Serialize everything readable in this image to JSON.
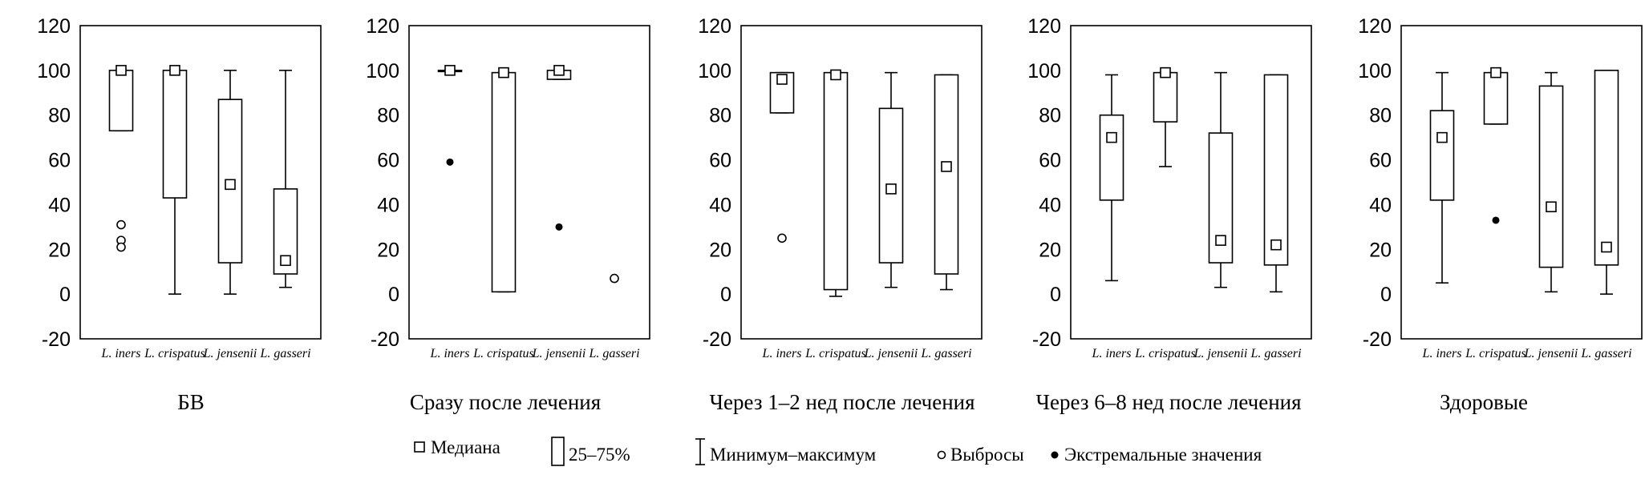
{
  "chart_data": [
    {
      "type": "boxplot",
      "title": "БВ",
      "categories": [
        "L. iners",
        "L. crispatus",
        "L. jensenii",
        "L. gasseri"
      ],
      "ylim": [
        -20,
        120
      ],
      "yticks": [
        -20,
        0,
        20,
        40,
        60,
        80,
        100,
        120
      ],
      "boxes": [
        {
          "min": 73,
          "q1": 73,
          "median": 100,
          "q3": 100,
          "max": 100,
          "outliers": [
            31,
            24,
            21
          ],
          "extremes": []
        },
        {
          "min": 0,
          "q1": 43,
          "median": 100,
          "q3": 100,
          "max": 100,
          "outliers": [],
          "extremes": []
        },
        {
          "min": 0,
          "q1": 14,
          "median": 49,
          "q3": 87,
          "max": 100,
          "outliers": [],
          "extremes": []
        },
        {
          "min": 3,
          "q1": 9,
          "median": 15,
          "q3": 47,
          "max": 100,
          "outliers": [],
          "extremes": []
        }
      ]
    },
    {
      "type": "boxplot",
      "title": "Сразу после лечения",
      "categories": [
        "L. iners",
        "L. crispatus",
        "L. jensenii",
        "L. gasseri"
      ],
      "ylim": [
        -20,
        120
      ],
      "yticks": [
        -20,
        0,
        20,
        40,
        60,
        80,
        100,
        120
      ],
      "boxes": [
        {
          "min": 100,
          "q1": 100,
          "median": 100,
          "q3": 100,
          "max": 100,
          "outliers": [],
          "extremes": [
            59
          ]
        },
        {
          "min": 1,
          "q1": 1,
          "median": 99,
          "q3": 99,
          "max": 99,
          "outliers": [],
          "extremes": []
        },
        {
          "min": 96,
          "q1": 96,
          "median": 100,
          "q3": 100,
          "max": 100,
          "outliers": [],
          "extremes": [
            30
          ]
        },
        {
          "min": null,
          "q1": null,
          "median": null,
          "q3": null,
          "max": null,
          "outliers": [
            7
          ],
          "extremes": []
        }
      ]
    },
    {
      "type": "boxplot",
      "title": "Через 1–2 нед после лечения",
      "categories": [
        "L. iners",
        "L. crispatus",
        "L. jensenii",
        "L. gasseri"
      ],
      "ylim": [
        -20,
        120
      ],
      "yticks": [
        -20,
        0,
        20,
        40,
        60,
        80,
        100,
        120
      ],
      "boxes": [
        {
          "min": 81,
          "q1": 81,
          "median": 96,
          "q3": 99,
          "max": 99,
          "outliers": [
            25
          ],
          "extremes": []
        },
        {
          "min": -1,
          "q1": 2,
          "median": 98,
          "q3": 99,
          "max": 99,
          "outliers": [],
          "extremes": []
        },
        {
          "min": 3,
          "q1": 14,
          "median": 47,
          "q3": 83,
          "max": 99,
          "outliers": [],
          "extremes": []
        },
        {
          "min": 2,
          "q1": 9,
          "median": 57,
          "q3": 98,
          "max": 98,
          "outliers": [],
          "extremes": []
        }
      ]
    },
    {
      "type": "boxplot",
      "title": "Через 6–8 нед после лечения",
      "categories": [
        "L. iners",
        "L. crispatus",
        "L. jensenii",
        "L. gasseri"
      ],
      "ylim": [
        -20,
        120
      ],
      "yticks": [
        -20,
        0,
        20,
        40,
        60,
        80,
        100,
        120
      ],
      "boxes": [
        {
          "min": 6,
          "q1": 42,
          "median": 70,
          "q3": 80,
          "max": 98,
          "outliers": [],
          "extremes": []
        },
        {
          "min": 57,
          "q1": 77,
          "median": 99,
          "q3": 99,
          "max": 99,
          "outliers": [],
          "extremes": []
        },
        {
          "min": 3,
          "q1": 14,
          "median": 24,
          "q3": 72,
          "max": 99,
          "outliers": [],
          "extremes": []
        },
        {
          "min": 1,
          "q1": 13,
          "median": 22,
          "q3": 98,
          "max": 98,
          "outliers": [],
          "extremes": []
        }
      ]
    },
    {
      "type": "boxplot",
      "title": "Здоровые",
      "categories": [
        "L. iners",
        "L. crispatus",
        "L. jensenii",
        "L. gasseri"
      ],
      "ylim": [
        -20,
        120
      ],
      "yticks": [
        -20,
        0,
        20,
        40,
        60,
        80,
        100,
        120
      ],
      "boxes": [
        {
          "min": 5,
          "q1": 42,
          "median": 70,
          "q3": 82,
          "max": 99,
          "outliers": [],
          "extremes": []
        },
        {
          "min": 76,
          "q1": 76,
          "median": 99,
          "q3": 99,
          "max": 99,
          "outliers": [],
          "extremes": [
            33
          ]
        },
        {
          "min": 1,
          "q1": 12,
          "median": 39,
          "q3": 93,
          "max": 99,
          "outliers": [],
          "extremes": []
        },
        {
          "min": 0,
          "q1": 13,
          "median": 21,
          "q3": 100,
          "max": 100,
          "outliers": [],
          "extremes": []
        }
      ]
    }
  ],
  "legend": {
    "median": "Медиана",
    "box": "25–75%",
    "range": "Минимум–максимум",
    "outliers": "Выбросы",
    "extremes": "Экстремальные значения"
  }
}
